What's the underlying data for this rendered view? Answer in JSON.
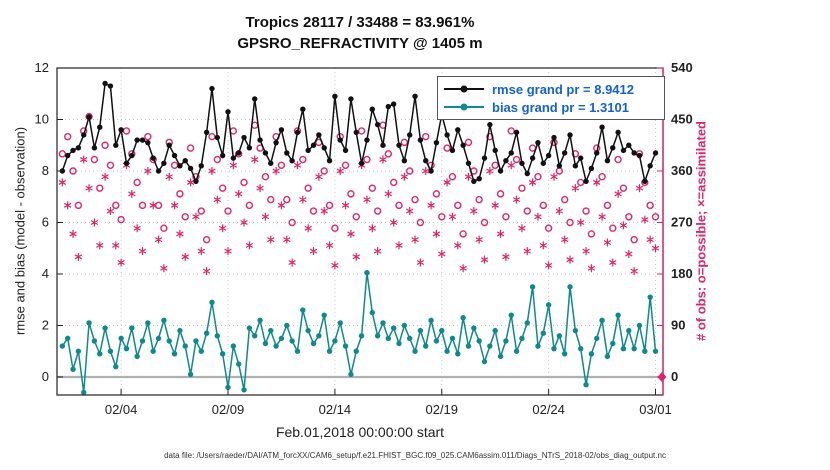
{
  "legend": {
    "rmse": "rmse grand pr = 8.9412",
    "bias": "bias grand pr = 1.3101"
  },
  "footer": "data file: /Users/raeder/DAI/ATM_forcXX/CAM6_setup/f.e21.FHIST_BGC.f09_025.CAM6assim.011/Diags_NTrS_2018-02/obs_diag_output.nc",
  "chart_data": {
    "type": "line",
    "title": "Tropics 28117 / 33488 = 83.961%",
    "subtitle": "GPSRO_REFRACTIVITY @ 1405 m",
    "xlabel": "Feb.01,2018 00:00:00 start",
    "ylabel_left": "rmse and bias (model - observation)",
    "ylabel_right": "# of obs: o=possible; ×=assimilated",
    "grid": true,
    "legend_position": "top-right",
    "x_start": 1.25,
    "x_step": 0.25,
    "x_range": [
      1,
      29.35
    ],
    "ylim_left": [
      -0.7,
      12
    ],
    "ylim_right": [
      -31.5,
      540
    ],
    "yticks_left": [
      0,
      2,
      4,
      6,
      8,
      10,
      12
    ],
    "yticks_right": [
      0,
      90,
      180,
      270,
      360,
      450,
      540
    ],
    "xticks": [
      {
        "day": 4,
        "label": "02/04"
      },
      {
        "day": 9,
        "label": "02/09"
      },
      {
        "day": 14,
        "label": "02/14"
      },
      {
        "day": 19,
        "label": "02/19"
      },
      {
        "day": 24,
        "label": "02/24"
      },
      {
        "day": 29,
        "label": "03/01"
      }
    ],
    "colors": {
      "rmse": "#111111",
      "bias": "#0e8a8a",
      "obs": "#e0246c",
      "legend_text": "#1460d8",
      "zero_line": "#b0b0b0"
    },
    "series": [
      {
        "name": "rmse",
        "type": "line",
        "axis": "left",
        "values": [
          8.0,
          8.6,
          8.8,
          8.9,
          9.4,
          10.1,
          8.9,
          9.7,
          11.4,
          11.3,
          9.0,
          9.6,
          8.3,
          8.6,
          9.2,
          9.2,
          9.1,
          8.5,
          8.0,
          8.3,
          9.0,
          8.6,
          8.2,
          8.4,
          8.1,
          7.6,
          8.2,
          9.5,
          11.2,
          9.3,
          8.6,
          10.3,
          8.5,
          8.7,
          9.3,
          8.9,
          10.8,
          9.2,
          8.7,
          8.3,
          9.1,
          9.6,
          8.7,
          8.4,
          9.5,
          10.4,
          8.8,
          9.0,
          9.4,
          8.9,
          8.4,
          10.9,
          9.2,
          8.8,
          10.8,
          9.5,
          8.3,
          9.2,
          10.4,
          9.8,
          9.0,
          10.5,
          10.6,
          9.0,
          8.4,
          9.4,
          10.9,
          9.2,
          8.4,
          8.0,
          9.1,
          10.2,
          9.4,
          8.8,
          9.6,
          9.0,
          8.3,
          7.6,
          7.7,
          8.5,
          9.8,
          8.8,
          8.0,
          8.4,
          8.7,
          9.5,
          8.3,
          7.9,
          8.5,
          9.1,
          8.3,
          8.6,
          9.3,
          8.2,
          8.7,
          9.4,
          8.2,
          8.5,
          7.6,
          8.1,
          8.7,
          9.7,
          8.4,
          8.9,
          9.5,
          8.8,
          9.0,
          8.7,
          8.6,
          7.6,
          8.2,
          8.7
        ]
      },
      {
        "name": "bias",
        "type": "line",
        "axis": "left",
        "values": [
          1.2,
          1.5,
          0.3,
          1.0,
          -0.6,
          2.1,
          1.4,
          0.9,
          1.9,
          1.0,
          0.4,
          1.5,
          1.1,
          1.9,
          0.8,
          1.4,
          2.1,
          1.0,
          1.5,
          2.2,
          1.4,
          0.9,
          1.8,
          1.2,
          0.1,
          1.4,
          1.0,
          1.7,
          2.9,
          1.6,
          0.9,
          -0.4,
          1.2,
          0.5,
          -0.5,
          1.9,
          1.6,
          2.2,
          1.3,
          1.8,
          1.2,
          1.5,
          2.0,
          1.4,
          1.0,
          2.6,
          1.8,
          1.3,
          1.6,
          2.4,
          1.0,
          1.4,
          2.1,
          1.2,
          0.1,
          1.0,
          1.6,
          4.05,
          2.5,
          1.6,
          2.1,
          1.5,
          1.9,
          1.3,
          2.0,
          1.5,
          1.0,
          1.8,
          1.2,
          2.2,
          1.4,
          1.8,
          1.0,
          1.5,
          0.9,
          2.3,
          1.2,
          1.9,
          1.4,
          0.6,
          1.2,
          1.8,
          0.8,
          1.4,
          2.4,
          1.0,
          1.5,
          2.1,
          3.5,
          1.2,
          1.7,
          2.8,
          1.1,
          1.6,
          0.9,
          3.5,
          1.8,
          1.1,
          -0.3,
          0.9,
          1.5,
          2.2,
          0.8,
          1.3,
          2.4,
          1.1,
          1.8,
          1.1,
          2.0,
          1.0,
          3.1,
          1.0
        ]
      },
      {
        "name": "possible",
        "type": "scatter",
        "marker": "circle",
        "axis": "right",
        "values": [
          390,
          420,
          360,
          300,
          430,
          455,
          380,
          330,
          405,
          370,
          300,
          275,
          430,
          390,
          340,
          300,
          420,
          380,
          300,
          260,
          410,
          370,
          320,
          280,
          400,
          350,
          290,
          240,
          420,
          380,
          330,
          290,
          430,
          390,
          340,
          300,
          440,
          400,
          350,
          310,
          420,
          370,
          310,
          270,
          430,
          380,
          330,
          290,
          410,
          360,
          300,
          260,
          420,
          370,
          320,
          280,
          430,
          380,
          330,
          290,
          440,
          390,
          340,
          300,
          410,
          360,
          310,
          270,
          420,
          370,
          320,
          280,
          400,
          350,
          300,
          250,
          410,
          360,
          310,
          270,
          420,
          370,
          320,
          280,
          430,
          380,
          330,
          290,
          400,
          350,
          300,
          260,
          410,
          360,
          310,
          270,
          390,
          340,
          290,
          250,
          400,
          350,
          300,
          260,
          380,
          330,
          280,
          240,
          390,
          340,
          300,
          280
        ]
      },
      {
        "name": "assimilated",
        "type": "scatter",
        "marker": "asterisk",
        "axis": "right",
        "values": [
          340,
          300,
          250,
          210,
          380,
          330,
          270,
          230,
          350,
          290,
          230,
          200,
          370,
          320,
          260,
          220,
          360,
          300,
          240,
          190,
          350,
          300,
          250,
          210,
          340,
          280,
          220,
          185,
          360,
          310,
          260,
          220,
          370,
          320,
          270,
          230,
          380,
          330,
          280,
          240,
          360,
          300,
          240,
          200,
          370,
          310,
          260,
          220,
          350,
          290,
          230,
          195,
          360,
          300,
          250,
          210,
          370,
          310,
          260,
          220,
          380,
          320,
          270,
          230,
          350,
          290,
          240,
          200,
          360,
          300,
          250,
          215,
          340,
          280,
          230,
          190,
          350,
          290,
          240,
          205,
          360,
          300,
          250,
          210,
          370,
          310,
          260,
          220,
          340,
          280,
          230,
          195,
          350,
          290,
          240,
          205,
          330,
          270,
          220,
          190,
          340,
          280,
          235,
          200,
          320,
          265,
          215,
          185,
          330,
          275,
          240,
          225
        ]
      }
    ],
    "end_marker": {
      "day": 29.3,
      "value": 0,
      "marker": "diamond",
      "axis": "right"
    }
  }
}
